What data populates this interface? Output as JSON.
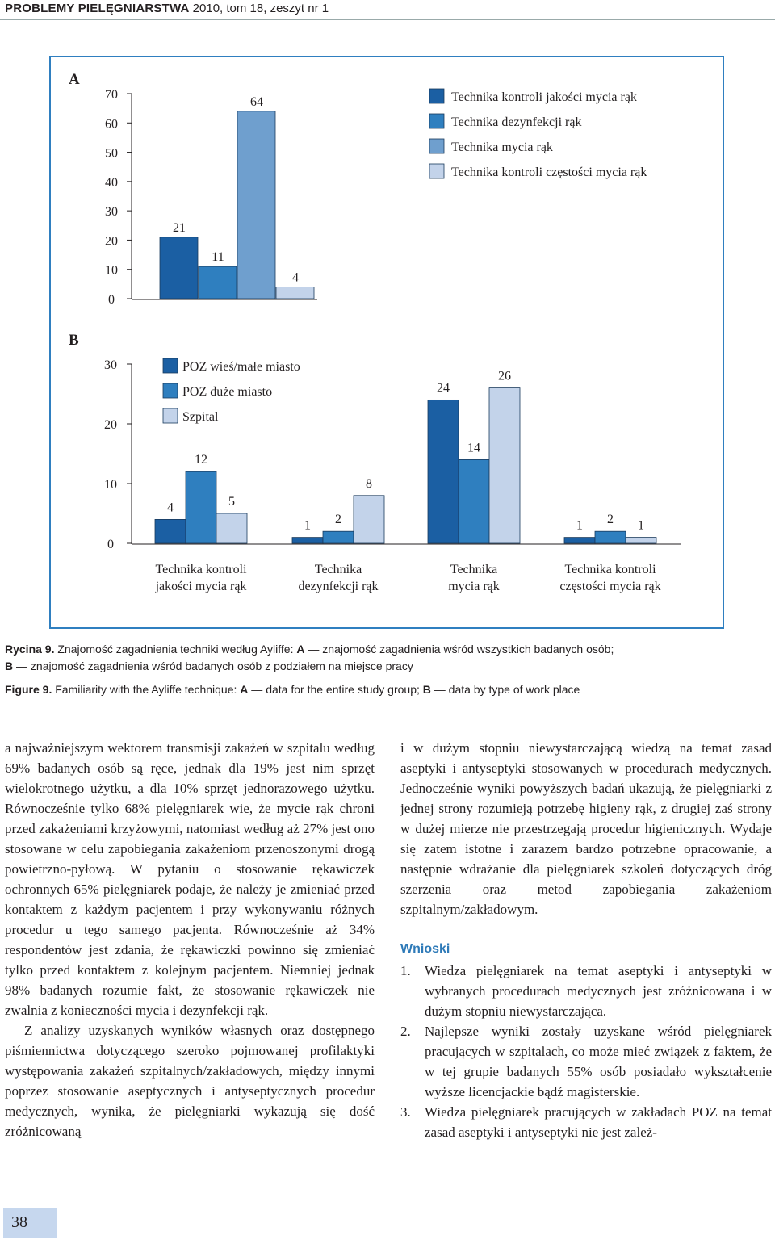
{
  "running_head": {
    "journal": "PROBLEMY PIELĘGNIARSTWA",
    "issue": " 2010, tom 18, zeszyt nr 1"
  },
  "colors": {
    "c1": "#1b5fa3",
    "c2": "#2f7fbf",
    "c3": "#6f9fce",
    "c4": "#c3d3ea",
    "frame": "#2f7fc0",
    "heading": "#2e7ab8"
  },
  "chart_data": [
    {
      "panel": "A",
      "type": "bar",
      "categories": [
        "Technika kontroli jakości mycia rąk",
        "Technika dezynfekcji rąk",
        "Technika mycia rąk",
        "Technika kontroli częstości mycia rąk"
      ],
      "values": [
        21,
        11,
        64,
        4
      ],
      "y_ticks": [
        "0",
        "10",
        "20",
        "30",
        "40",
        "50",
        "60",
        "70"
      ],
      "ylim": [
        0,
        70
      ],
      "legend": [
        "Technika kontroli jakości mycia rąk",
        "Technika dezynfekcji rąk",
        "Technika mycia rąk",
        "Technika kontroli częstości mycia rąk"
      ],
      "legend_position": "top-right"
    },
    {
      "panel": "B",
      "type": "bar",
      "categories": [
        "Technika kontroli jakości mycia rąk",
        "Technika dezynfekcji rąk",
        "Technika mycia rąk",
        "Technika kontroli częstości mycia rąk"
      ],
      "category_lines": [
        [
          "Technika kontroli",
          "jakości mycia rąk"
        ],
        [
          "Technika",
          "dezynfekcji rąk"
        ],
        [
          "Technika",
          "mycia rąk"
        ],
        [
          "Technika kontroli",
          "częstości mycia rąk"
        ]
      ],
      "series": [
        {
          "name": "POZ wieś/małe miasto",
          "values": [
            4,
            1,
            24,
            1
          ]
        },
        {
          "name": "POZ duże miasto",
          "values": [
            12,
            2,
            14,
            2
          ]
        },
        {
          "name": "Szpital",
          "values": [
            5,
            8,
            26,
            1
          ]
        }
      ],
      "y_ticks": [
        "0",
        "10",
        "20",
        "30"
      ],
      "ylim": [
        0,
        30
      ],
      "legend_position": "top-left"
    }
  ],
  "caption": {
    "pl_label": "Rycina 9.",
    "pl_line1": " Znajomość zagadnienia techniki według Ayliffe: ",
    "pl_a": "A",
    "pl_a_text": " — znajomość zagadnienia wśród wszystkich badanych osób;",
    "pl_b": "B",
    "pl_b_text": " — znajomość zagadnienia wśród badanych osób z podziałem na miejsce pracy",
    "en_label": "Figure 9.",
    "en_line1": " Familiarity with the Ayliffe technique: ",
    "en_a": "A",
    "en_a_text": " — data for the entire study group; ",
    "en_b": "B",
    "en_b_text": " — data by type of work place"
  },
  "left_column": {
    "p1": "a najważniejszym wektorem transmisji zakażeń w szpitalu według 69% badanych osób są ręce, jednak dla 19% jest nim sprzęt wielokrotnego użytku, a dla 10% sprzęt jednorazowego użytku. Równocześnie tylko 68% pielęgniarek wie, że mycie rąk chroni przed zakażeniami krzyżowymi, natomiast według aż 27% jest ono stosowane w celu zapobiegania zakażeniom przenoszonymi drogą powietrzno-pyłową. W pytaniu o stosowanie rękawiczek ochronnych 65% pielęgniarek podaje, że należy je zmieniać przed kontaktem z każdym pacjentem i przy wykonywaniu różnych procedur u tego samego pacjenta. Równocześnie aż 34% respondentów jest zdania, że rękawiczki powinno się zmieniać tylko przed kontaktem z kolejnym pacjentem. Niemniej jednak 98% badanych rozumie fakt, że stosowanie rękawiczek nie zwalnia z konieczności mycia i dezynfekcji rąk.",
    "p2": "Z analizy uzyskanych wyników własnych oraz dostępnego piśmiennictwa dotyczącego szeroko pojmowanej profilaktyki występowania zakażeń szpitalnych/zakładowych, między innymi poprzez stosowanie aseptycznych i antyseptycznych procedur medycznych, wynika, że pielęgniarki wykazują się dość zróżnicowaną"
  },
  "right_column": {
    "p1": "i w dużym stopniu niewystarczającą wiedzą na temat zasad aseptyki i antyseptyki stosowanych w procedurach medycznych. Jednocześnie wyniki powyższych badań ukazują, że pielęgniarki z jednej strony rozumieją potrzebę higieny rąk, z drugiej zaś strony w dużej mierze nie przestrzegają procedur higienicznych. Wydaje się zatem istotne i zarazem bardzo potrzebne opracowanie, a następnie wdrażanie dla pielęgniarek szkoleń dotyczących dróg szerzenia oraz metod zapobiegania zakażeniom szpitalnym/zakładowym.",
    "heading": "Wnioski",
    "items": [
      {
        "num": "1.",
        "text": "Wiedza pielęgniarek na temat aseptyki i antyseptyki w wybranych procedurach medycznych jest zróżnicowana i w dużym stopniu niewystarczająca."
      },
      {
        "num": "2.",
        "text": "Najlepsze wyniki zostały uzyskane wśród pielęgniarek pracujących w szpitalach, co może mieć związek z faktem, że w tej grupie badanych 55% osób posiadało wykształcenie wyższe licencjackie bądź magisterskie."
      },
      {
        "num": "3.",
        "text": "Wiedza pielęgniarek pracujących w zakładach POZ na temat zasad aseptyki i antyseptyki nie jest zależ-"
      }
    ]
  },
  "page_number": "38"
}
